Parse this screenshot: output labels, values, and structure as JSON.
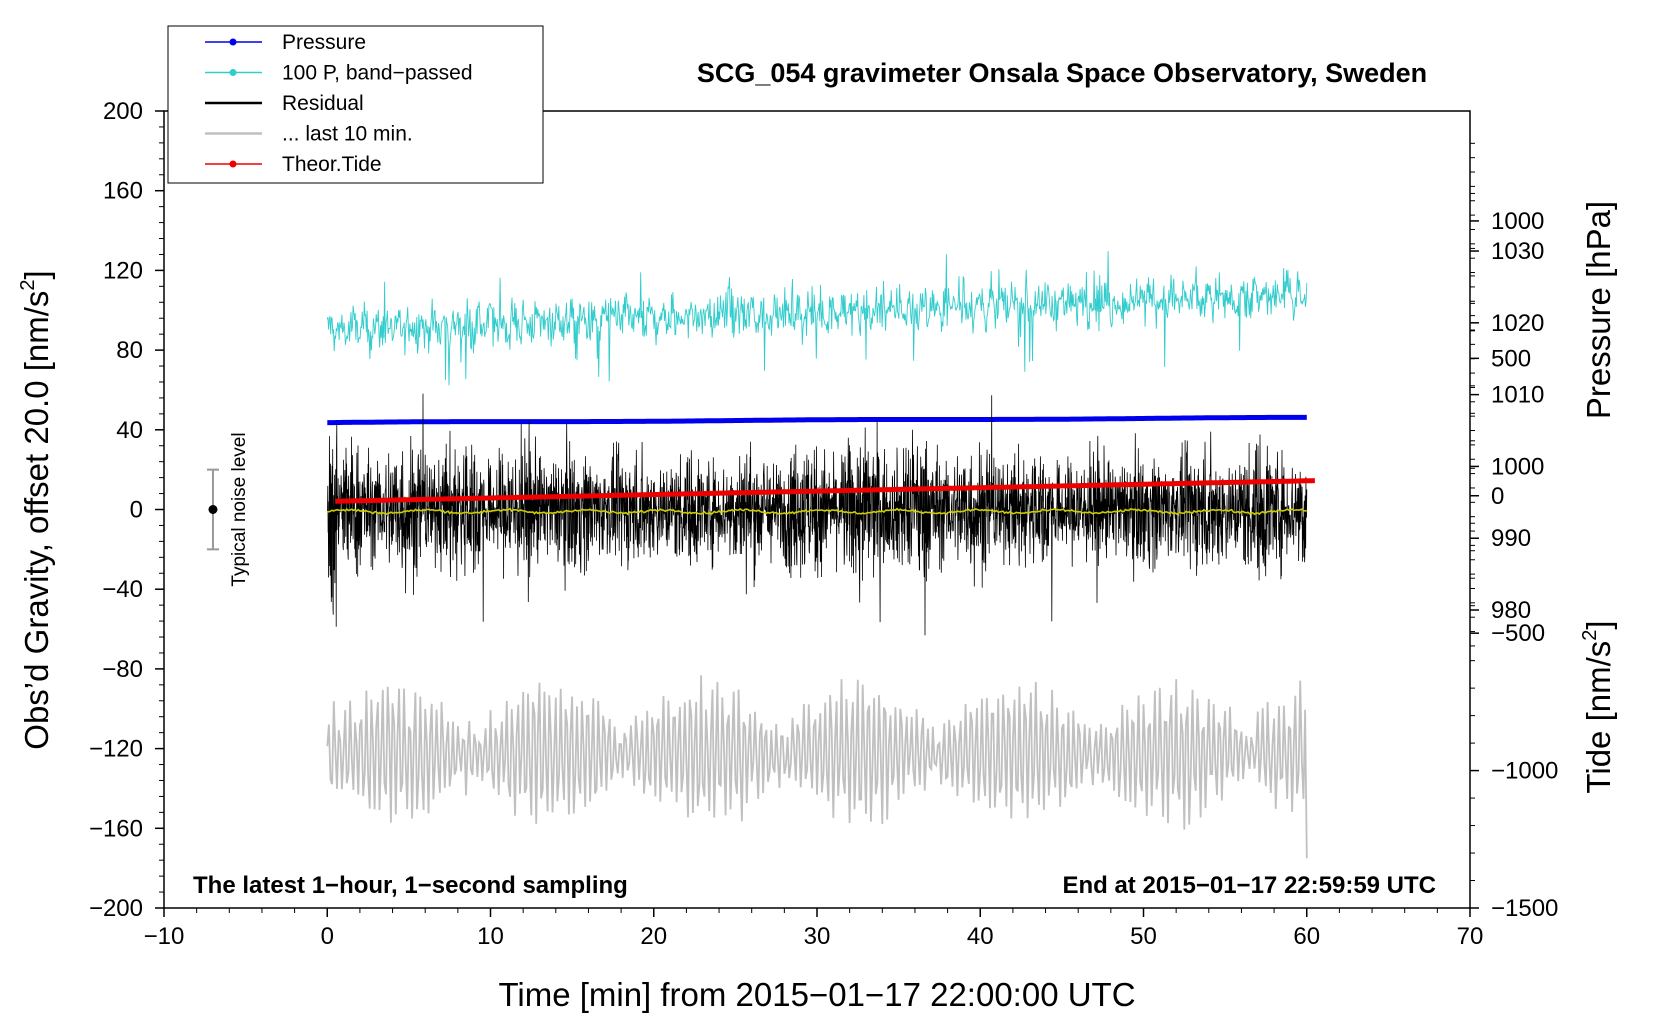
{
  "chart_data": {
    "type": "line",
    "title": "SCG_054 gravimeter Onsala Space Observatory, Sweden",
    "xlabel": "Time [min] from 2015−01−17 22:00:00 UTC",
    "ylabel": "Obs’d Gravity, offset 20.0 [nm/s",
    "ylabel_sup": "2",
    "ylabel_end": "]",
    "y2label_pressure": "Pressure [hPa]",
    "y2label_tide": "Tide [nm/s",
    "y2label_tide_sup": "2",
    "y2label_tide_end": "]",
    "xlim": [
      -10,
      70
    ],
    "ylim": [
      -200,
      200
    ],
    "x_ticks": [
      -10,
      0,
      10,
      20,
      30,
      40,
      50,
      60,
      70
    ],
    "x_tick_labels": [
      "−10",
      "0",
      "10",
      "20",
      "30",
      "40",
      "50",
      "60",
      "70"
    ],
    "y_ticks": [
      -200,
      -160,
      -120,
      -80,
      -40,
      0,
      40,
      80,
      120,
      160,
      200
    ],
    "y_tick_labels": [
      "−200",
      "−160",
      "−120",
      "−80",
      "−40",
      "0",
      "40",
      "80",
      "120",
      "160",
      "200"
    ],
    "pressure_axis": {
      "ticks": [
        980,
        990,
        1000,
        1010,
        1020,
        1030
      ],
      "tick_labels": [
        "980",
        "990",
        "1000",
        "1010",
        "1020",
        "1030"
      ],
      "range": [
        938.5,
        1049.5
      ]
    },
    "tide_axis": {
      "ticks": [
        -1500,
        -1000,
        -500,
        0,
        500,
        1000
      ],
      "tick_labels": [
        "−1500",
        "−1000",
        "−500",
        "0",
        "500",
        "1000"
      ],
      "range": [
        -1500,
        1400
      ]
    },
    "series": [
      {
        "name": "Pressure",
        "color": "#0000ee",
        "axis": "pressure",
        "x_range": [
          0,
          60
        ],
        "start": 1006.1,
        "end": 1006.8
      },
      {
        "name": "100 P, band−passed",
        "color": "#33cccc",
        "axis": "gravity",
        "x_range": [
          0,
          60
        ],
        "start": 90,
        "end": 108,
        "amplitude": 8
      },
      {
        "name": "Residual",
        "color": "#000000",
        "axis": "gravity",
        "x_range": [
          0,
          60
        ],
        "center": 0,
        "amplitude": 25,
        "spike_max": 78,
        "spike_min": -78
      },
      {
        "name": "... last 10 min.",
        "color": "#c0c0c0",
        "axis": "gravity",
        "x_range": [
          0,
          60
        ],
        "center": -122,
        "amplitude": 25,
        "spike_min": -175
      },
      {
        "name": "Theor.Tide",
        "color": "#ee0000",
        "axis": "tide",
        "x_range": [
          0.5,
          60.5
        ],
        "start": -20,
        "end": 55
      },
      {
        "name": "Residual smoothed",
        "color": "#cccc00",
        "axis": "gravity",
        "x_range": [
          0,
          60
        ],
        "center": -1
      }
    ],
    "legend": [
      {
        "label": "Pressure",
        "color": "#0000ee",
        "marker": true
      },
      {
        "label": "100 P, band−passed",
        "color": "#33cccc",
        "marker": true
      },
      {
        "label": "Residual",
        "color": "#000000",
        "marker": false
      },
      {
        "label": "... last 10 min.",
        "color": "#c0c0c0",
        "marker": false
      },
      {
        "label": "Theor.Tide",
        "color": "#ee0000",
        "marker": true
      }
    ],
    "legend_position": "top-left",
    "noise_level": {
      "label": "Typical noise level",
      "x": -7,
      "center": 0,
      "half_range": 20
    },
    "notes": {
      "left": "The latest 1−hour, 1−second sampling",
      "right": "End at 2015−01−17 22:59:59 UTC"
    }
  }
}
